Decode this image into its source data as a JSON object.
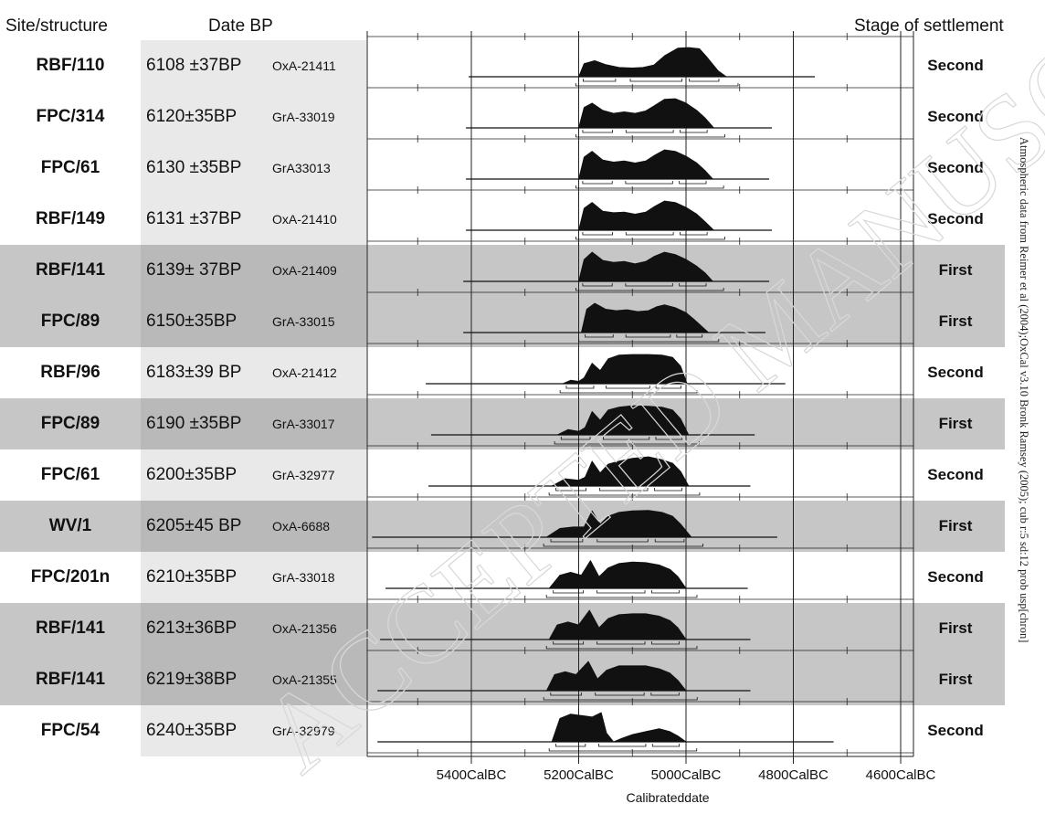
{
  "headers": {
    "site": "Site/structure",
    "date": "Date BP",
    "stage": "Stage of settlement"
  },
  "chart_data": {
    "type": "table",
    "xlabel": "Calibrateddate",
    "x_axis_reversed": true,
    "xlim_calbc": [
      5600,
      4550
    ],
    "x_ticks": [
      {
        "value": 5400,
        "label": "5400CalBC"
      },
      {
        "value": 5200,
        "label": "5200CalBC"
      },
      {
        "value": 5000,
        "label": "5000CalBC"
      },
      {
        "value": 4800,
        "label": "4800CalBC"
      },
      {
        "value": 4600,
        "label": "4600CalBC"
      }
    ],
    "rows": [
      {
        "site": "RBF/110",
        "date": "6108 ±37BP",
        "lab": "OxA-21411",
        "stage": "Second",
        "shaded": false,
        "range": [
          5405,
          4760
        ],
        "dist": [
          [
            5200,
            0
          ],
          [
            5190,
            0.45
          ],
          [
            5170,
            0.55
          ],
          [
            5150,
            0.42
          ],
          [
            5125,
            0.32
          ],
          [
            5100,
            0.3
          ],
          [
            5080,
            0.32
          ],
          [
            5060,
            0.4
          ],
          [
            5040,
            0.72
          ],
          [
            5015,
            0.98
          ],
          [
            4995,
            1
          ],
          [
            4975,
            0.96
          ],
          [
            4960,
            0.65
          ],
          [
            4940,
            0.2
          ],
          [
            4925,
            0
          ]
        ]
      },
      {
        "site": "FPC/314",
        "date": "6120±35BP",
        "lab": "GrA-33019",
        "stage": "Second",
        "shaded": false,
        "range": [
          5410,
          4840
        ],
        "dist": [
          [
            5200,
            0
          ],
          [
            5190,
            0.7
          ],
          [
            5175,
            0.85
          ],
          [
            5155,
            0.6
          ],
          [
            5135,
            0.5
          ],
          [
            5115,
            0.55
          ],
          [
            5095,
            0.5
          ],
          [
            5075,
            0.58
          ],
          [
            5060,
            0.75
          ],
          [
            5040,
            0.98
          ],
          [
            5020,
            1
          ],
          [
            5000,
            0.85
          ],
          [
            4980,
            0.6
          ],
          [
            4965,
            0.35
          ],
          [
            4948,
            0
          ]
        ]
      },
      {
        "site": "FPC/61",
        "date": "6130 ±35BP",
        "lab": "GrA33013",
        "stage": "Second",
        "shaded": false,
        "range": [
          5410,
          4845
        ],
        "dist": [
          [
            5200,
            0
          ],
          [
            5190,
            0.75
          ],
          [
            5175,
            0.95
          ],
          [
            5155,
            0.65
          ],
          [
            5135,
            0.58
          ],
          [
            5115,
            0.62
          ],
          [
            5095,
            0.55
          ],
          [
            5075,
            0.62
          ],
          [
            5060,
            0.8
          ],
          [
            5040,
            1
          ],
          [
            5020,
            0.95
          ],
          [
            5000,
            0.78
          ],
          [
            4980,
            0.55
          ],
          [
            4965,
            0.3
          ],
          [
            4950,
            0
          ]
        ]
      },
      {
        "site": "RBF/149",
        "date": "6131 ±37BP",
        "lab": "OxA-21410",
        "stage": "Second",
        "shaded": false,
        "range": [
          5410,
          4840
        ],
        "dist": [
          [
            5200,
            0
          ],
          [
            5190,
            0.75
          ],
          [
            5175,
            0.95
          ],
          [
            5155,
            0.65
          ],
          [
            5135,
            0.6
          ],
          [
            5115,
            0.62
          ],
          [
            5095,
            0.55
          ],
          [
            5075,
            0.62
          ],
          [
            5060,
            0.8
          ],
          [
            5040,
            1
          ],
          [
            5020,
            0.95
          ],
          [
            5000,
            0.78
          ],
          [
            4980,
            0.55
          ],
          [
            4965,
            0.3
          ],
          [
            4948,
            0
          ]
        ]
      },
      {
        "site": "RBF/141",
        "date": "6139± 37BP",
        "lab": "OxA-21409",
        "stage": "First",
        "shaded": true,
        "range": [
          5415,
          4845
        ],
        "dist": [
          [
            5200,
            0
          ],
          [
            5190,
            0.75
          ],
          [
            5175,
            1
          ],
          [
            5155,
            0.72
          ],
          [
            5135,
            0.65
          ],
          [
            5115,
            0.68
          ],
          [
            5095,
            0.6
          ],
          [
            5075,
            0.68
          ],
          [
            5060,
            0.85
          ],
          [
            5040,
            1
          ],
          [
            5020,
            0.92
          ],
          [
            5000,
            0.75
          ],
          [
            4980,
            0.52
          ],
          [
            4965,
            0.3
          ],
          [
            4950,
            0
          ]
        ]
      },
      {
        "site": "FPC/89",
        "date": "6150±35BP",
        "lab": "GrA-33015",
        "stage": "First",
        "shaded": true,
        "range": [
          5415,
          4852
        ],
        "dist": [
          [
            5195,
            0
          ],
          [
            5185,
            0.8
          ],
          [
            5170,
            1
          ],
          [
            5150,
            0.8
          ],
          [
            5130,
            0.75
          ],
          [
            5110,
            0.78
          ],
          [
            5090,
            0.72
          ],
          [
            5070,
            0.75
          ],
          [
            5055,
            0.88
          ],
          [
            5040,
            0.95
          ],
          [
            5020,
            0.85
          ],
          [
            5000,
            0.68
          ],
          [
            4985,
            0.45
          ],
          [
            4970,
            0.2
          ],
          [
            4958,
            0
          ]
        ]
      },
      {
        "site": "RBF/96",
        "date": "6183±39 BP",
        "lab": "OxA-21412",
        "stage": "Second",
        "shaded": false,
        "range": [
          5485,
          4815
        ],
        "dist": [
          [
            5230,
            0
          ],
          [
            5215,
            0.12
          ],
          [
            5200,
            0.08
          ],
          [
            5190,
            0.2
          ],
          [
            5175,
            0.7
          ],
          [
            5160,
            0.45
          ],
          [
            5145,
            0.85
          ],
          [
            5125,
            0.98
          ],
          [
            5100,
            1
          ],
          [
            5070,
            1
          ],
          [
            5045,
            0.98
          ],
          [
            5025,
            0.9
          ],
          [
            5010,
            0.6
          ],
          [
            4998,
            0
          ]
        ]
      },
      {
        "site": "FPC/89",
        "date": "6190 ±35BP",
        "lab": "GrA-33017",
        "stage": "First",
        "shaded": true,
        "range": [
          5475,
          4872
        ],
        "dist": [
          [
            5240,
            0
          ],
          [
            5220,
            0.18
          ],
          [
            5200,
            0.12
          ],
          [
            5188,
            0.25
          ],
          [
            5175,
            0.8
          ],
          [
            5160,
            0.5
          ],
          [
            5145,
            0.85
          ],
          [
            5125,
            0.95
          ],
          [
            5100,
            1
          ],
          [
            5070,
            0.98
          ],
          [
            5045,
            0.95
          ],
          [
            5025,
            0.85
          ],
          [
            5010,
            0.55
          ],
          [
            4995,
            0
          ]
        ]
      },
      {
        "site": "FPC/61",
        "date": "6200±35BP",
        "lab": "GrA-32977",
        "stage": "Second",
        "shaded": false,
        "range": [
          5480,
          4880
        ],
        "dist": [
          [
            5250,
            0
          ],
          [
            5225,
            0.25
          ],
          [
            5200,
            0.2
          ],
          [
            5188,
            0.3
          ],
          [
            5175,
            0.85
          ],
          [
            5160,
            0.45
          ],
          [
            5145,
            0.75
          ],
          [
            5125,
            0.85
          ],
          [
            5100,
            0.95
          ],
          [
            5070,
            1
          ],
          [
            5045,
            0.9
          ],
          [
            5025,
            0.78
          ],
          [
            5010,
            0.5
          ],
          [
            4995,
            0
          ]
        ]
      },
      {
        "site": "WV/1",
        "date": "6205±45 BP",
        "lab": "OxA-6688",
        "stage": "First",
        "shaded": true,
        "range": [
          5585,
          4830
        ],
        "dist": [
          [
            5260,
            0
          ],
          [
            5235,
            0.3
          ],
          [
            5210,
            0.35
          ],
          [
            5190,
            0.35
          ],
          [
            5175,
            0.9
          ],
          [
            5160,
            0.45
          ],
          [
            5145,
            0.72
          ],
          [
            5125,
            0.85
          ],
          [
            5100,
            0.9
          ],
          [
            5070,
            0.92
          ],
          [
            5045,
            0.85
          ],
          [
            5025,
            0.72
          ],
          [
            5010,
            0.45
          ],
          [
            4990,
            0
          ]
        ]
      },
      {
        "site": "FPC/201n",
        "date": "6210±35BP",
        "lab": "GrA-33018",
        "stage": "Second",
        "shaded": false,
        "range": [
          5560,
          4885
        ],
        "dist": [
          [
            5255,
            0
          ],
          [
            5235,
            0.45
          ],
          [
            5215,
            0.55
          ],
          [
            5195,
            0.45
          ],
          [
            5178,
            0.95
          ],
          [
            5162,
            0.4
          ],
          [
            5145,
            0.7
          ],
          [
            5125,
            0.85
          ],
          [
            5100,
            0.9
          ],
          [
            5075,
            0.88
          ],
          [
            5050,
            0.8
          ],
          [
            5030,
            0.65
          ],
          [
            5015,
            0.4
          ],
          [
            5000,
            0
          ]
        ]
      },
      {
        "site": "RBF/141",
        "date": "6213±36BP",
        "lab": "OxA-21356",
        "stage": "First",
        "shaded": true,
        "range": [
          5570,
          4880
        ],
        "dist": [
          [
            5255,
            0
          ],
          [
            5240,
            0.5
          ],
          [
            5220,
            0.6
          ],
          [
            5200,
            0.5
          ],
          [
            5180,
            1
          ],
          [
            5162,
            0.4
          ],
          [
            5145,
            0.72
          ],
          [
            5125,
            0.85
          ],
          [
            5100,
            0.88
          ],
          [
            5075,
            0.88
          ],
          [
            5050,
            0.8
          ],
          [
            5030,
            0.65
          ],
          [
            5015,
            0.4
          ],
          [
            5000,
            0
          ]
        ]
      },
      {
        "site": "RBF/141",
        "date": "6219±38BP",
        "lab": "OxA-21355",
        "stage": "First",
        "shaded": true,
        "range": [
          5575,
          4880
        ],
        "dist": [
          [
            5260,
            0
          ],
          [
            5245,
            0.55
          ],
          [
            5225,
            0.65
          ],
          [
            5205,
            0.55
          ],
          [
            5182,
            1
          ],
          [
            5165,
            0.4
          ],
          [
            5148,
            0.7
          ],
          [
            5125,
            0.85
          ],
          [
            5100,
            0.85
          ],
          [
            5075,
            0.85
          ],
          [
            5050,
            0.75
          ],
          [
            5030,
            0.6
          ],
          [
            5015,
            0.35
          ],
          [
            5000,
            0
          ]
        ]
      },
      {
        "site": "FPC/54",
        "date": "6240±35BP",
        "lab": "GrA-32979",
        "stage": "Second",
        "shaded": false,
        "range": [
          5575,
          4725
        ],
        "dist": [
          [
            5250,
            0
          ],
          [
            5235,
            0.8
          ],
          [
            5215,
            0.95
          ],
          [
            5195,
            0.9
          ],
          [
            5175,
            0.85
          ],
          [
            5158,
            1
          ],
          [
            5148,
            0.3
          ],
          [
            5135,
            0
          ],
          [
            5120,
            0.12
          ],
          [
            5100,
            0.25
          ],
          [
            5075,
            0.35
          ],
          [
            5050,
            0.45
          ],
          [
            5030,
            0.35
          ],
          [
            5015,
            0.2
          ],
          [
            5000,
            0
          ]
        ]
      }
    ]
  },
  "note": "Atmospheric data from Reimer et al (2004);OxCal v3.10 Bronk Ramsey (2005); cub r:5 sd:12 prob usp[chron]",
  "watermark": "ACCEPTED MANUSCRIPT"
}
